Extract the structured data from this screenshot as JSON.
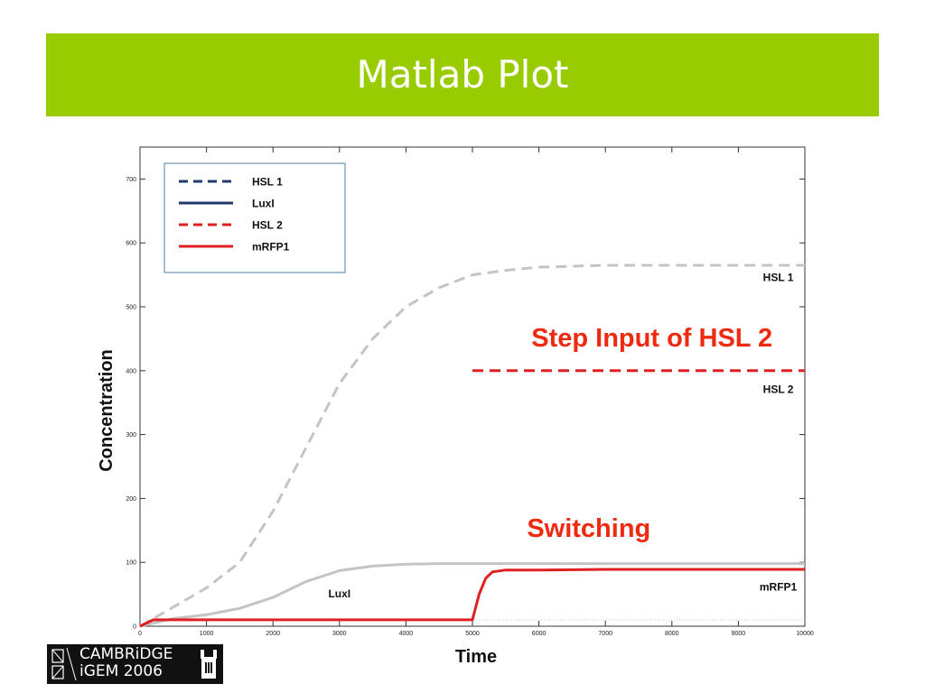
{
  "slide": {
    "title": "Matlab Plot"
  },
  "logo": {
    "line1": "CAMBRiDGE",
    "line2": "iGEM 2006"
  },
  "chart_data": {
    "type": "line",
    "xlabel": "Time",
    "ylabel": "Concentration",
    "xlim": [
      0,
      10000
    ],
    "ylim": [
      0,
      750
    ],
    "xticks": [
      0,
      1000,
      2000,
      3000,
      4000,
      5000,
      6000,
      7000,
      8000,
      9000,
      10000
    ],
    "yticks": [
      0,
      100,
      200,
      300,
      400,
      500,
      600,
      700
    ],
    "grid": false,
    "legend_position": "top-left",
    "legend": [
      {
        "label": "HSL 1",
        "color": "#1f3a6b",
        "style": "dashed"
      },
      {
        "label": "LuxI",
        "color": "#1f3a6b",
        "style": "solid"
      },
      {
        "label": "HSL 2",
        "color": "#e02020",
        "style": "dashed"
      },
      {
        "label": "mRFP1",
        "color": "#e02020",
        "style": "solid"
      }
    ],
    "series": [
      {
        "name": "HSL 1",
        "color": "#c4c4c4",
        "style": "dashed",
        "x": [
          0,
          500,
          1000,
          1500,
          2000,
          2500,
          3000,
          3500,
          4000,
          4500,
          5000,
          5500,
          6000,
          7000,
          8000,
          9000,
          10000
        ],
        "y": [
          0,
          30,
          60,
          100,
          180,
          280,
          380,
          450,
          500,
          530,
          550,
          557,
          562,
          565,
          565,
          565,
          565
        ]
      },
      {
        "name": "LuxI",
        "color": "#c4c4c4",
        "style": "solid",
        "x": [
          0,
          500,
          1000,
          1500,
          2000,
          2500,
          3000,
          3500,
          4000,
          4500,
          5000,
          6000,
          7000,
          8000,
          9000,
          10000
        ],
        "y": [
          0,
          12,
          18,
          28,
          45,
          70,
          87,
          94,
          97,
          98,
          98,
          98,
          98,
          98,
          98,
          98
        ]
      },
      {
        "name": "HSL 2",
        "color": "#e02020",
        "style": "dashed",
        "x": [
          5000,
          10000
        ],
        "y": [
          400,
          400
        ]
      },
      {
        "name": "mRFP1",
        "color": "#e02020",
        "style": "solid",
        "x": [
          0,
          200,
          4990,
          5000,
          5100,
          5200,
          5300,
          5500,
          6000,
          7000,
          8000,
          9000,
          10000
        ],
        "y": [
          0,
          10,
          10,
          10,
          50,
          75,
          85,
          88,
          88,
          89,
          89,
          89,
          89
        ]
      }
    ],
    "curve_labels": [
      {
        "text": "HSL 1",
        "x": 9600,
        "y": 540
      },
      {
        "text": "HSL 2",
        "x": 9600,
        "y": 365
      },
      {
        "text": "LuxI",
        "x": 3000,
        "y": 45
      },
      {
        "text": "mRFP1",
        "x": 9600,
        "y": 56
      }
    ],
    "annotations": [
      {
        "text": "Step Input of HSL 2",
        "x": 7700,
        "y": 438,
        "color": "#ee2a10"
      },
      {
        "text": "Switching",
        "x": 6750,
        "y": 140,
        "color": "#ee2a10"
      }
    ]
  }
}
